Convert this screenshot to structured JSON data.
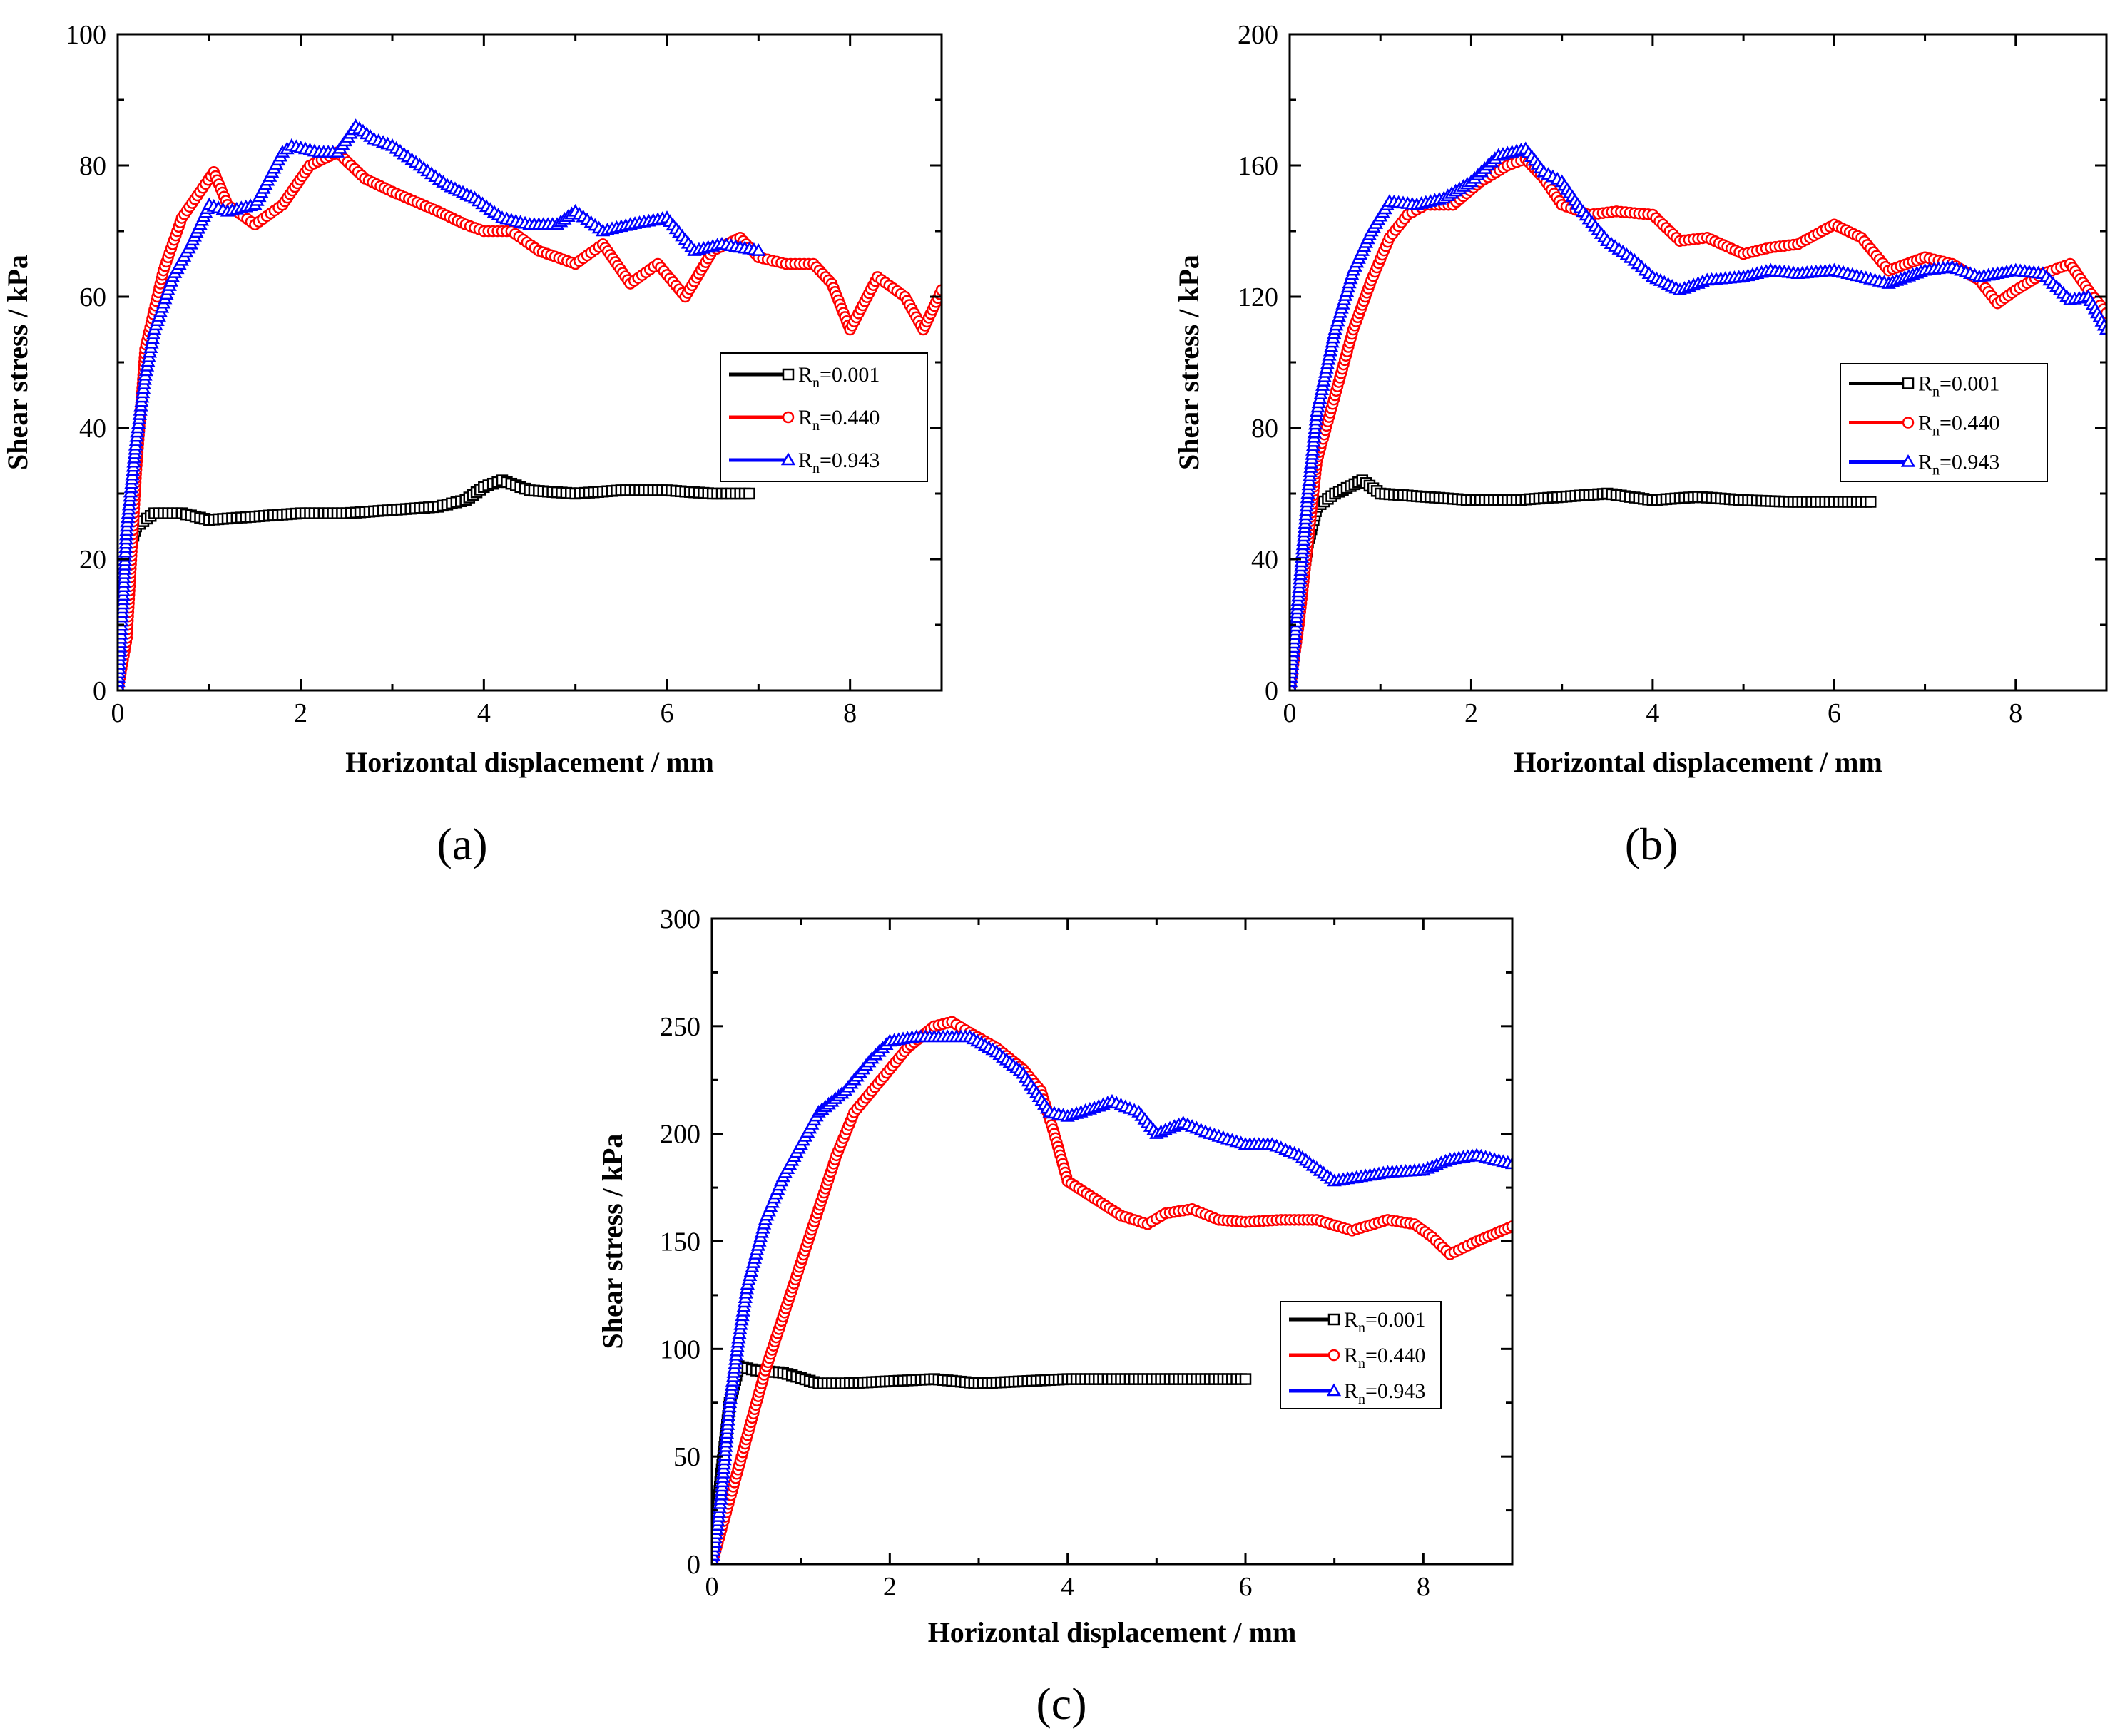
{
  "chart_data": [
    {
      "type": "line",
      "panel_label": "(a)",
      "xlabel": "Horizontal displacement / mm",
      "ylabel": "Shear stress / kPa",
      "xlim": [
        0,
        9
      ],
      "ylim": [
        0,
        100
      ],
      "xticks": [
        0,
        2,
        4,
        6,
        8
      ],
      "yticks": [
        0,
        20,
        40,
        60,
        80,
        100
      ],
      "legend_position": "right",
      "series": [
        {
          "name": "R_n=0.001",
          "label_main": "R",
          "label_sub": "n",
          "label_value": "=0.001",
          "color": "#000000",
          "marker": "square",
          "x": [
            0,
            0.1,
            0.2,
            0.4,
            0.7,
            1.0,
            1.5,
            2.0,
            2.5,
            3.0,
            3.5,
            3.8,
            4.0,
            4.2,
            4.5,
            5.0,
            5.5,
            6.0,
            6.5,
            6.9
          ],
          "y": [
            0,
            20,
            25,
            27,
            27,
            26,
            26.5,
            27,
            27,
            27.5,
            28,
            29,
            31,
            32,
            30.5,
            30,
            30.5,
            30.5,
            30,
            30
          ]
        },
        {
          "name": "R_n=0.440",
          "label_main": "R",
          "label_sub": "n",
          "label_value": "=0.440",
          "color": "#ff0000",
          "marker": "circle",
          "x": [
            0,
            0.1,
            0.2,
            0.3,
            0.5,
            0.7,
            0.9,
            1.05,
            1.2,
            1.5,
            1.8,
            2.1,
            2.4,
            2.7,
            3.0,
            3.5,
            3.8,
            4.0,
            4.3,
            4.6,
            5.0,
            5.3,
            5.6,
            5.9,
            6.2,
            6.5,
            6.8,
            7.0,
            7.3,
            7.6,
            7.8,
            8.0,
            8.3,
            8.6,
            8.8,
            9.0
          ],
          "y": [
            0,
            8,
            33,
            52,
            64,
            72,
            76,
            79,
            74,
            71,
            74,
            80,
            82,
            78,
            76,
            73,
            71,
            70,
            70,
            67,
            65,
            68,
            62,
            65,
            60,
            67,
            69,
            66,
            65,
            65,
            62,
            55,
            63,
            60,
            55,
            61
          ]
        },
        {
          "name": "R_n=0.943",
          "label_main": "R",
          "label_sub": "n",
          "label_value": "=0.943",
          "color": "#0000ff",
          "marker": "triangle",
          "x": [
            0,
            0.1,
            0.2,
            0.3,
            0.4,
            0.6,
            0.8,
            1.0,
            1.2,
            1.5,
            1.8,
            1.9,
            2.2,
            2.4,
            2.6,
            2.8,
            3.0,
            3.3,
            3.6,
            3.9,
            4.2,
            4.5,
            4.8,
            5.0,
            5.3,
            5.6,
            6.0,
            6.3,
            6.6,
            7.0
          ],
          "y": [
            0,
            25,
            38,
            48,
            55,
            63,
            68,
            74,
            73,
            74,
            82,
            83,
            82,
            82,
            86,
            84,
            83,
            80,
            77,
            75,
            72,
            71,
            71,
            73,
            70,
            71,
            72,
            67,
            68,
            67
          ]
        }
      ]
    },
    {
      "type": "line",
      "panel_label": "(b)",
      "xlabel": "Horizontal displacement / mm",
      "ylabel": "Shear stress / kPa",
      "xlim": [
        0,
        9
      ],
      "ylim": [
        0,
        200
      ],
      "xticks": [
        0,
        2,
        4,
        6,
        8
      ],
      "yticks": [
        0,
        40,
        80,
        120,
        160,
        200
      ],
      "legend_position": "right",
      "series": [
        {
          "name": "R_n=0.001",
          "label_main": "R",
          "label_sub": "n",
          "label_value": "=0.001",
          "color": "#000000",
          "marker": "square",
          "x": [
            0,
            0.1,
            0.2,
            0.3,
            0.5,
            0.8,
            1.0,
            1.5,
            2.0,
            2.5,
            3.0,
            3.5,
            4.0,
            4.5,
            5.0,
            5.5,
            6.0,
            6.4
          ],
          "y": [
            0,
            25,
            45,
            56,
            60,
            64,
            60,
            59,
            58,
            58,
            59,
            60,
            58,
            59,
            58,
            57.5,
            57.5,
            57.5
          ]
        },
        {
          "name": "R_n=0.440",
          "label_main": "R",
          "label_sub": "n",
          "label_value": "=0.440",
          "color": "#ff0000",
          "marker": "circle",
          "x": [
            0,
            0.1,
            0.2,
            0.3,
            0.5,
            0.7,
            0.9,
            1.1,
            1.3,
            1.5,
            1.8,
            2.1,
            2.4,
            2.6,
            2.8,
            3.0,
            3.3,
            3.6,
            4.0,
            4.3,
            4.6,
            5.0,
            5.3,
            5.6,
            6.0,
            6.3,
            6.6,
            7.0,
            7.3,
            7.6,
            7.8,
            8.0,
            8.3,
            8.6,
            8.8,
            9.0
          ],
          "y": [
            0,
            20,
            45,
            70,
            90,
            110,
            125,
            138,
            145,
            148,
            148,
            155,
            160,
            162,
            156,
            148,
            145,
            146,
            145,
            137,
            138,
            133,
            135,
            136,
            142,
            138,
            128,
            132,
            130,
            125,
            118,
            122,
            127,
            130,
            122,
            115
          ]
        },
        {
          "name": "R_n=0.943",
          "label_main": "R",
          "label_sub": "n",
          "label_value": "=0.943",
          "color": "#0000ff",
          "marker": "triangle",
          "x": [
            0,
            0.1,
            0.2,
            0.3,
            0.5,
            0.7,
            0.9,
            1.1,
            1.4,
            1.7,
            2.0,
            2.3,
            2.6,
            2.8,
            3.0,
            3.2,
            3.5,
            3.8,
            4.0,
            4.3,
            4.6,
            5.0,
            5.3,
            5.6,
            6.0,
            6.3,
            6.6,
            7.0,
            7.3,
            7.6,
            8.0,
            8.3,
            8.6,
            8.8,
            9.0
          ],
          "y": [
            0,
            30,
            60,
            85,
            110,
            128,
            140,
            149,
            148,
            150,
            155,
            163,
            165,
            158,
            155,
            147,
            137,
            131,
            126,
            122,
            125,
            126,
            128,
            127,
            128,
            126,
            124,
            128,
            129,
            126,
            128,
            127,
            119,
            120,
            110
          ]
        }
      ]
    },
    {
      "type": "line",
      "panel_label": "(c)",
      "xlabel": "Horizontal displacement / mm",
      "ylabel": "Shear stress / kPa",
      "xlim": [
        0,
        9
      ],
      "ylim": [
        0,
        300
      ],
      "xticks": [
        0,
        2,
        4,
        6,
        8
      ],
      "yticks": [
        0,
        50,
        100,
        150,
        200,
        250,
        300
      ],
      "legend_position": "lower-right",
      "series": [
        {
          "name": "R_n=0.001",
          "label_main": "R",
          "label_sub": "n",
          "label_value": "=0.001",
          "color": "#000000",
          "marker": "square",
          "x": [
            0,
            0.1,
            0.2,
            0.3,
            0.5,
            0.8,
            1.2,
            1.5,
            2.0,
            2.5,
            3.0,
            3.5,
            4.0,
            4.5,
            5.0,
            5.5,
            6.0
          ],
          "y": [
            0,
            40,
            75,
            92,
            90,
            89,
            84,
            84,
            85,
            86,
            84,
            85,
            86,
            86,
            86,
            86,
            86
          ]
        },
        {
          "name": "R_n=0.440",
          "label_main": "R",
          "label_sub": "n",
          "label_value": "=0.440",
          "color": "#ff0000",
          "marker": "circle",
          "x": [
            0,
            0.2,
            0.4,
            0.6,
            0.8,
            1.0,
            1.2,
            1.4,
            1.6,
            1.8,
            2.0,
            2.2,
            2.5,
            2.7,
            2.9,
            3.2,
            3.5,
            3.7,
            3.85,
            4.0,
            4.3,
            4.6,
            4.9,
            5.1,
            5.4,
            5.7,
            6.0,
            6.4,
            6.8,
            7.2,
            7.6,
            7.9,
            8.1,
            8.3,
            8.6,
            9.0
          ],
          "y": [
            0,
            30,
            60,
            90,
            115,
            140,
            165,
            190,
            210,
            220,
            230,
            240,
            250,
            252,
            247,
            240,
            230,
            220,
            200,
            178,
            170,
            162,
            158,
            163,
            165,
            160,
            159,
            160,
            160,
            155,
            160,
            158,
            152,
            144,
            150,
            157
          ]
        },
        {
          "name": "R_n=0.943",
          "label_main": "R",
          "label_sub": "n",
          "label_value": "=0.943",
          "color": "#0000ff",
          "marker": "triangle",
          "x": [
            0,
            0.1,
            0.2,
            0.3,
            0.4,
            0.6,
            0.8,
            1.0,
            1.2,
            1.5,
            1.8,
            2.0,
            2.3,
            2.6,
            2.9,
            3.2,
            3.5,
            3.8,
            4.0,
            4.3,
            4.5,
            4.8,
            5.0,
            5.3,
            5.6,
            6.0,
            6.3,
            6.6,
            7.0,
            7.3,
            7.6,
            8.0,
            8.3,
            8.6,
            9.0
          ],
          "y": [
            0,
            30,
            75,
            105,
            130,
            160,
            180,
            195,
            210,
            220,
            235,
            243,
            245,
            245,
            245,
            238,
            228,
            210,
            208,
            212,
            215,
            210,
            200,
            205,
            200,
            195,
            195,
            190,
            178,
            180,
            182,
            183,
            188,
            190,
            186
          ]
        }
      ]
    }
  ]
}
